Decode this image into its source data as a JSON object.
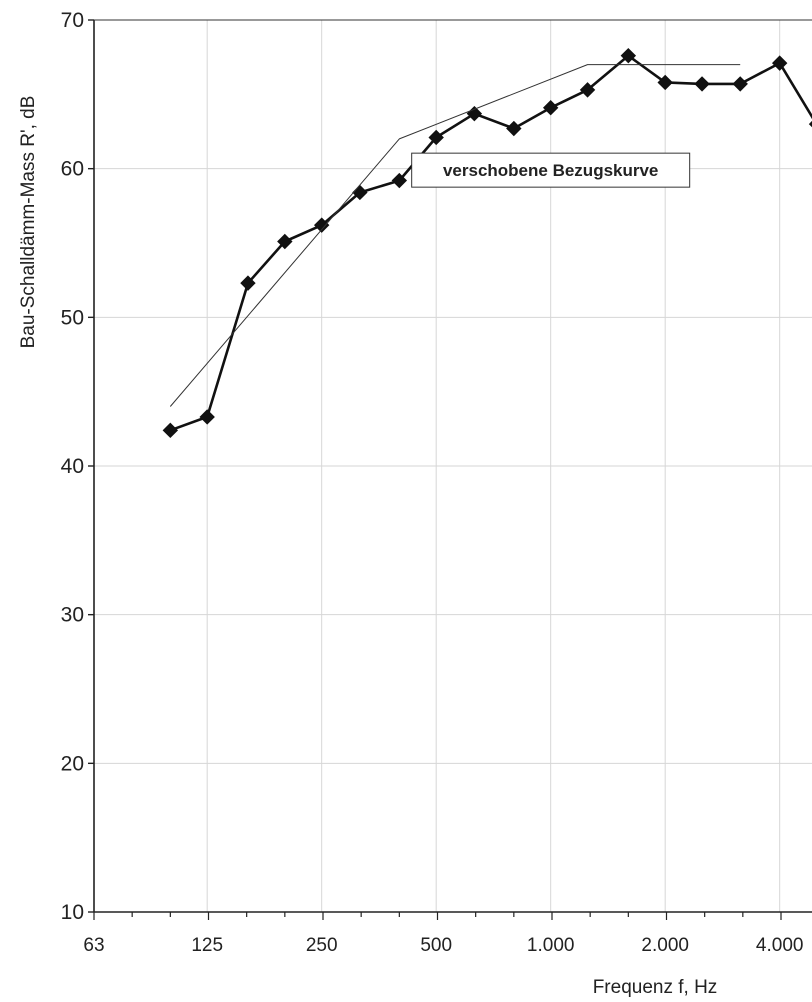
{
  "chart_data": {
    "type": "line",
    "title": "",
    "xlabel": "Frequenz f, Hz",
    "ylabel": "Bau-Schalldämm-Mass R', dB",
    "x_scale": "log",
    "xlim": [
      63,
      4000
    ],
    "ylim": [
      10,
      70
    ],
    "x_ticks": [
      {
        "value": 63,
        "label": "63"
      },
      {
        "value": 125,
        "label": "125"
      },
      {
        "value": 250,
        "label": "250"
      },
      {
        "value": 500,
        "label": "500"
      },
      {
        "value": 1000,
        "label": "1.000"
      },
      {
        "value": 2000,
        "label": "2.000"
      },
      {
        "value": 4000,
        "label": "4.000"
      }
    ],
    "y_ticks": [
      {
        "value": 10,
        "label": "10"
      },
      {
        "value": 20,
        "label": "20"
      },
      {
        "value": 30,
        "label": "30"
      },
      {
        "value": 40,
        "label": "40"
      },
      {
        "value": 50,
        "label": "50"
      },
      {
        "value": 60,
        "label": "60"
      },
      {
        "value": 70,
        "label": "70"
      }
    ],
    "grid": true,
    "series": [
      {
        "kind": "measured",
        "color": "#111111",
        "marker": "diamond",
        "x": [
          100,
          125,
          160,
          200,
          250,
          315,
          400,
          500,
          630,
          800,
          1000,
          1250,
          1600,
          2000,
          2500,
          3150,
          4000,
          5000
        ],
        "y": [
          42.4,
          43.3,
          52.3,
          55.1,
          56.2,
          58.4,
          59.2,
          62.1,
          63.7,
          62.7,
          64.1,
          65.3,
          67.6,
          65.8,
          65.7,
          65.7,
          67.1,
          63.0
        ]
      },
      {
        "kind": "reference",
        "color": "#333333",
        "marker": "none",
        "x": [
          100,
          400,
          1250,
          3150
        ],
        "y": [
          44,
          62,
          67,
          67
        ]
      }
    ],
    "annotations": [
      {
        "text": "verschobene Bezugskurve",
        "x": 1000,
        "y": 59.9
      }
    ]
  }
}
